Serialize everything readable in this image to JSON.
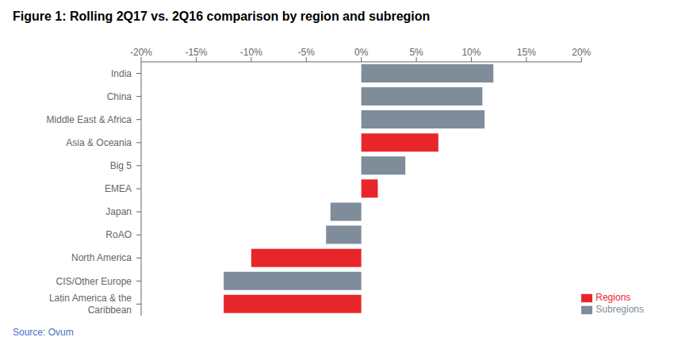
{
  "chart_data": {
    "type": "bar",
    "orientation": "horizontal",
    "stacked": true,
    "legend": "lower right",
    "title": "Figure 1: Rolling 2Q17 vs. 2Q16 comparison by region and subregion",
    "annotations": [
      "Source: Ovum"
    ],
    "categories": [
      "India",
      "China",
      "Middle East & Africa",
      "Asia & Oceania",
      "Big 5",
      "EMEA",
      "Japan",
      "RoAO",
      "North America",
      "CIS/Other Europe",
      "Latin America & the\nCaribbean"
    ],
    "series": [
      {
        "name": "Regions",
        "color": "#e8262a",
        "values": [
          null,
          null,
          null,
          7.0,
          null,
          1.5,
          null,
          null,
          -10.0,
          null,
          -12.5
        ]
      },
      {
        "name": "Subregions",
        "color": "#7f8c9a",
        "values": [
          12.0,
          11.0,
          11.2,
          null,
          4.0,
          null,
          -2.8,
          -3.2,
          null,
          -12.5,
          null
        ]
      }
    ],
    "xlim": [
      -20,
      20
    ],
    "xticks": [
      {
        "value": -20,
        "label": "-20%"
      },
      {
        "value": -15,
        "label": "-15%"
      },
      {
        "value": -10,
        "label": "-10%"
      },
      {
        "value": -5,
        "label": "-5%"
      },
      {
        "value": 0,
        "label": "0%"
      },
      {
        "value": 5,
        "label": "5%"
      },
      {
        "value": 10,
        "label": "10%"
      },
      {
        "value": 15,
        "label": "15%"
      },
      {
        "value": 20,
        "label": "20%"
      }
    ]
  }
}
